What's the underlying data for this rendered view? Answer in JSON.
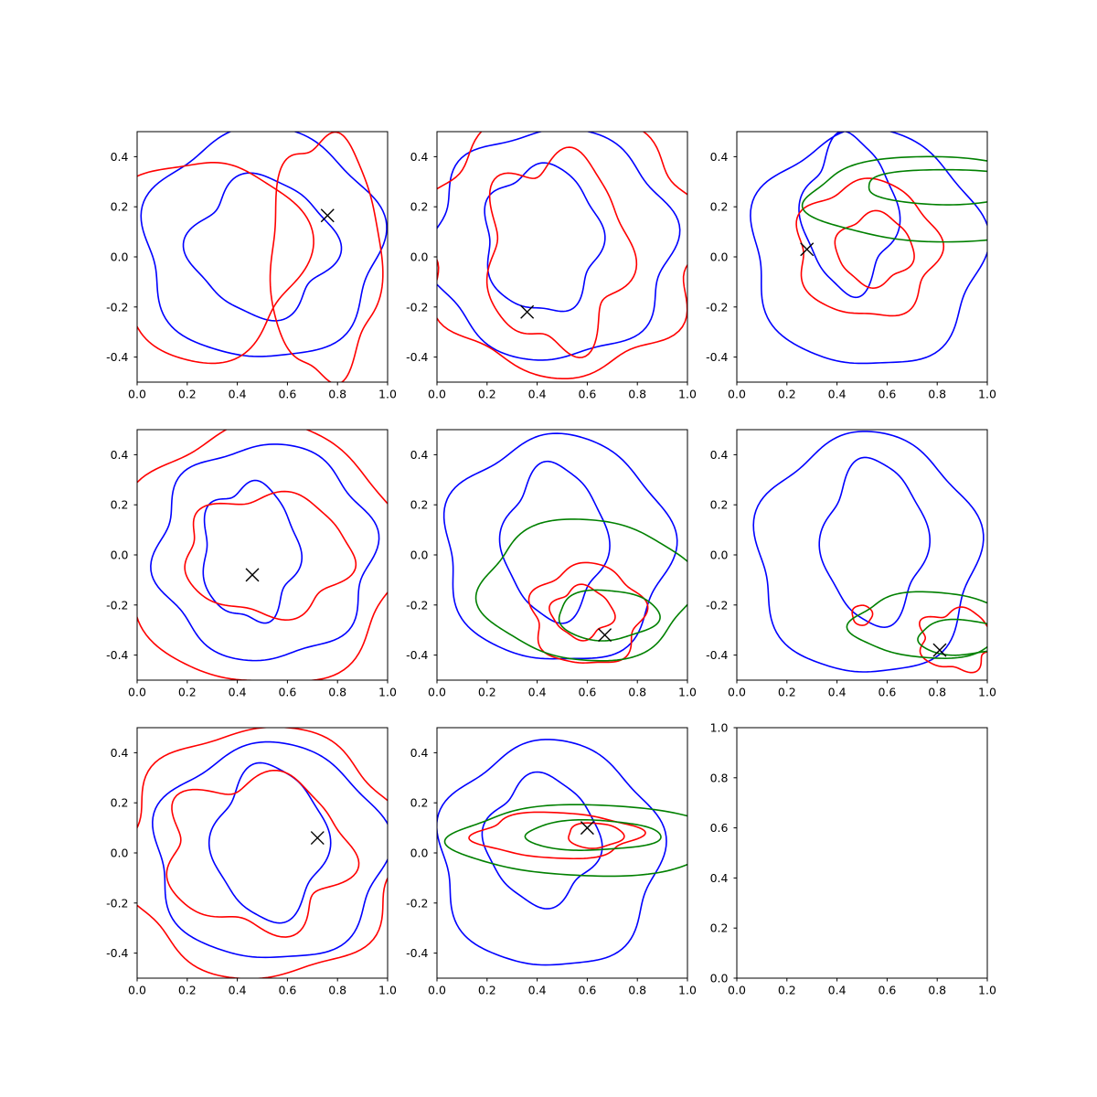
{
  "figure": {
    "rows": 3,
    "cols": 3
  },
  "colors": {
    "series_a": "#0000ff",
    "series_b": "#ff0000",
    "series_c": "#008000",
    "marker": "#000000"
  },
  "chart_data": [
    {
      "type": "contour",
      "panel": "row1-col1",
      "xlim": [
        0,
        1
      ],
      "ylim": [
        -0.5,
        0.5
      ],
      "xticks": [
        "0.0",
        "0.2",
        "0.4",
        "0.6",
        "0.8",
        "1.0"
      ],
      "yticks": [
        "0.4",
        "0.2",
        "0.0",
        "-0.2",
        "-0.4"
      ],
      "marker": {
        "x": 0.76,
        "y": 0.165
      },
      "series": [
        {
          "color": "blue",
          "contours": [
            {
              "cx": 0.5,
              "cy": 0.05,
              "rx": 0.47,
              "ry": 0.46,
              "w": 0.05,
              "k": 5,
              "ph": 0.3
            },
            {
              "cx": 0.5,
              "cy": 0.04,
              "rx": 0.28,
              "ry": 0.27,
              "w": 0.1,
              "k": 4,
              "ph": 1.2
            }
          ]
        },
        {
          "color": "red",
          "contours": [
            {
              "cx": 0.28,
              "cy": 0.0,
              "rx": 0.38,
              "ry": 0.4,
              "w": 0.1,
              "k": 3,
              "ph": 0.5
            },
            {
              "cx": 0.75,
              "cy": 0.0,
              "rx": 0.22,
              "ry": 0.48,
              "w": 0.06,
              "k": 5,
              "ph": 2.0
            }
          ]
        }
      ]
    },
    {
      "type": "contour",
      "panel": "row1-col2",
      "xlim": [
        0,
        1
      ],
      "ylim": [
        -0.5,
        0.5
      ],
      "xticks": [
        "0.0",
        "0.2",
        "0.4",
        "0.6",
        "0.8",
        "1.0"
      ],
      "yticks": [
        "0.4",
        "0.2",
        "0.0",
        "-0.2",
        "-0.4"
      ],
      "marker": {
        "x": 0.36,
        "y": -0.22
      },
      "series": [
        {
          "color": "blue",
          "contours": [
            {
              "cx": 0.46,
              "cy": 0.05,
              "rx": 0.48,
              "ry": 0.46,
              "w": 0.05,
              "k": 6,
              "ph": 0.4
            },
            {
              "cx": 0.42,
              "cy": 0.07,
              "rx": 0.23,
              "ry": 0.29,
              "w": 0.07,
              "k": 5,
              "ph": 1.0
            }
          ]
        },
        {
          "color": "red",
          "contours": [
            {
              "cx": 0.5,
              "cy": 0.05,
              "rx": 0.55,
              "ry": 0.52,
              "w": 0.06,
              "k": 7,
              "ph": 0.2
            },
            {
              "cx": 0.48,
              "cy": 0.02,
              "rx": 0.28,
              "ry": 0.38,
              "w": 0.12,
              "k": 5,
              "ph": 1.7
            }
          ]
        }
      ]
    },
    {
      "type": "contour",
      "panel": "row1-col3",
      "xlim": [
        0,
        1
      ],
      "ylim": [
        -0.5,
        0.5
      ],
      "xticks": [
        "0.0",
        "0.2",
        "0.4",
        "0.6",
        "0.8",
        "1.0"
      ],
      "yticks": [
        "0.4",
        "0.2",
        "0.0",
        "-0.2",
        "-0.4"
      ],
      "marker": {
        "x": 0.28,
        "y": 0.03
      },
      "series": [
        {
          "color": "blue",
          "contours": [
            {
              "cx": 0.52,
              "cy": 0.03,
              "rx": 0.46,
              "ry": 0.47,
              "w": 0.05,
              "k": 5,
              "ph": 0.6
            },
            {
              "cx": 0.45,
              "cy": 0.17,
              "rx": 0.18,
              "ry": 0.3,
              "w": 0.1,
              "k": 4,
              "ph": 1.4
            }
          ]
        },
        {
          "color": "red",
          "contours": [
            {
              "cx": 0.52,
              "cy": 0.03,
              "rx": 0.28,
              "ry": 0.27,
              "w": 0.07,
              "k": 5,
              "ph": 0.9
            },
            {
              "cx": 0.55,
              "cy": 0.03,
              "rx": 0.15,
              "ry": 0.14,
              "w": 0.08,
              "k": 4,
              "ph": 2.2
            }
          ]
        },
        {
          "color": "green",
          "contours": [
            {
              "cx": 0.8,
              "cy": 0.23,
              "rx": 0.52,
              "ry": 0.17,
              "w": 0.04,
              "k": 4,
              "ph": 0.2
            },
            {
              "cx": 0.85,
              "cy": 0.28,
              "rx": 0.34,
              "ry": 0.07,
              "w": 0.04,
              "k": 3,
              "ph": 1.1
            }
          ]
        }
      ]
    },
    {
      "type": "contour",
      "panel": "row2-col1",
      "xlim": [
        0,
        1
      ],
      "ylim": [
        -0.5,
        0.5
      ],
      "xticks": [
        "0.0",
        "0.2",
        "0.4",
        "0.6",
        "0.8",
        "1.0"
      ],
      "yticks": [
        "0.4",
        "0.2",
        "0.0",
        "-0.2",
        "-0.4"
      ],
      "marker": {
        "x": 0.46,
        "y": -0.08
      },
      "series": [
        {
          "color": "blue",
          "contours": [
            {
              "cx": 0.51,
              "cy": 0.01,
              "rx": 0.43,
              "ry": 0.43,
              "w": 0.05,
              "k": 6,
              "ph": 0.3
            },
            {
              "cx": 0.45,
              "cy": 0.01,
              "rx": 0.19,
              "ry": 0.27,
              "w": 0.08,
              "k": 5,
              "ph": 1.5
            }
          ]
        },
        {
          "color": "red",
          "contours": [
            {
              "cx": 0.5,
              "cy": 0.0,
              "rx": 0.55,
              "ry": 0.52,
              "w": 0.05,
              "k": 5,
              "ph": 0.8
            },
            {
              "cx": 0.52,
              "cy": 0.0,
              "rx": 0.33,
              "ry": 0.24,
              "w": 0.08,
              "k": 5,
              "ph": 2.0
            }
          ]
        }
      ]
    },
    {
      "type": "contour",
      "panel": "row2-col2",
      "xlim": [
        0,
        1
      ],
      "ylim": [
        -0.5,
        0.5
      ],
      "xticks": [
        "0.0",
        "0.2",
        "0.4",
        "0.6",
        "0.8",
        "1.0"
      ],
      "yticks": [
        "0.4",
        "0.2",
        "0.0",
        "-0.2",
        "-0.4"
      ],
      "marker": {
        "x": 0.67,
        "y": -0.32
      },
      "series": [
        {
          "color": "blue",
          "contours": [
            {
              "cx": 0.48,
              "cy": 0.02,
              "rx": 0.45,
              "ry": 0.45,
              "w": 0.05,
              "k": 5,
              "ph": 0.7
            },
            {
              "cx": 0.47,
              "cy": 0.05,
              "rx": 0.2,
              "ry": 0.3,
              "w": 0.08,
              "k": 4,
              "ph": 1.3
            }
          ]
        },
        {
          "color": "red",
          "contours": [
            {
              "cx": 0.6,
              "cy": -0.24,
              "rx": 0.22,
              "ry": 0.2,
              "w": 0.08,
              "k": 5,
              "ph": 0.4
            },
            {
              "cx": 0.58,
              "cy": -0.23,
              "rx": 0.12,
              "ry": 0.1,
              "w": 0.1,
              "k": 4,
              "ph": 1.9
            }
          ]
        },
        {
          "color": "green",
          "contours": [
            {
              "cx": 0.6,
              "cy": -0.14,
              "rx": 0.42,
              "ry": 0.28,
              "w": 0.05,
              "k": 4,
              "ph": 0.5
            },
            {
              "cx": 0.68,
              "cy": -0.24,
              "rx": 0.2,
              "ry": 0.1,
              "w": 0.05,
              "k": 3,
              "ph": 1.6
            }
          ]
        }
      ]
    },
    {
      "type": "contour",
      "panel": "row2-col3",
      "xlim": [
        0,
        1
      ],
      "ylim": [
        -0.5,
        0.5
      ],
      "xticks": [
        "0.0",
        "0.2",
        "0.4",
        "0.6",
        "0.8",
        "1.0"
      ],
      "yticks": [
        "0.4",
        "0.2",
        "0.0",
        "-0.2",
        "-0.4"
      ],
      "marker": {
        "x": 0.81,
        "y": -0.38
      },
      "series": [
        {
          "color": "blue",
          "contours": [
            {
              "cx": 0.52,
              "cy": 0.0,
              "rx": 0.44,
              "ry": 0.48,
              "w": 0.05,
              "k": 5,
              "ph": 0.3
            },
            {
              "cx": 0.55,
              "cy": 0.05,
              "rx": 0.2,
              "ry": 0.32,
              "w": 0.08,
              "k": 4,
              "ph": 1.0
            }
          ]
        },
        {
          "color": "red",
          "contours": [
            {
              "cx": 0.5,
              "cy": -0.24,
              "rx": 0.04,
              "ry": 0.04,
              "w": 0.05,
              "k": 3,
              "ph": 0.5
            },
            {
              "cx": 0.88,
              "cy": -0.34,
              "rx": 0.15,
              "ry": 0.12,
              "w": 0.12,
              "k": 5,
              "ph": 1.4
            }
          ]
        },
        {
          "color": "green",
          "contours": [
            {
              "cx": 0.78,
              "cy": -0.28,
              "rx": 0.32,
              "ry": 0.13,
              "w": 0.05,
              "k": 4,
              "ph": 0.8
            },
            {
              "cx": 0.9,
              "cy": -0.33,
              "rx": 0.18,
              "ry": 0.07,
              "w": 0.05,
              "k": 3,
              "ph": 2.1
            }
          ]
        }
      ]
    },
    {
      "type": "contour",
      "panel": "row3-col1",
      "xlim": [
        0,
        1
      ],
      "ylim": [
        -0.5,
        0.5
      ],
      "xticks": [
        "0.0",
        "0.2",
        "0.4",
        "0.6",
        "0.8",
        "1.0"
      ],
      "yticks": [
        "0.4",
        "0.2",
        "0.0",
        "-0.2",
        "-0.4"
      ],
      "marker": {
        "x": 0.72,
        "y": 0.06
      },
      "series": [
        {
          "color": "blue",
          "contours": [
            {
              "cx": 0.53,
              "cy": 0.0,
              "rx": 0.46,
              "ry": 0.43,
              "w": 0.05,
              "k": 5,
              "ph": 0.5
            },
            {
              "cx": 0.53,
              "cy": 0.04,
              "rx": 0.22,
              "ry": 0.3,
              "w": 0.08,
              "k": 4,
              "ph": 1.1
            }
          ]
        },
        {
          "color": "red",
          "contours": [
            {
              "cx": 0.5,
              "cy": 0.0,
              "rx": 0.55,
              "ry": 0.5,
              "w": 0.05,
              "k": 6,
              "ph": 0.2
            },
            {
              "cx": 0.48,
              "cy": 0.0,
              "rx": 0.36,
              "ry": 0.3,
              "w": 0.12,
              "k": 5,
              "ph": 1.8
            }
          ]
        }
      ]
    },
    {
      "type": "contour",
      "panel": "row3-col2",
      "xlim": [
        0,
        1
      ],
      "ylim": [
        -0.5,
        0.5
      ],
      "xticks": [
        "0.0",
        "0.2",
        "0.4",
        "0.6",
        "0.8",
        "1.0"
      ],
      "yticks": [
        "0.4",
        "0.2",
        "0.0",
        "-0.2",
        "-0.4"
      ],
      "marker": {
        "x": 0.6,
        "y": 0.1
      },
      "series": [
        {
          "color": "blue",
          "contours": [
            {
              "cx": 0.45,
              "cy": -0.01,
              "rx": 0.44,
              "ry": 0.45,
              "w": 0.05,
              "k": 5,
              "ph": 0.4
            },
            {
              "cx": 0.42,
              "cy": 0.05,
              "rx": 0.22,
              "ry": 0.25,
              "w": 0.08,
              "k": 4,
              "ph": 1.6
            }
          ]
        },
        {
          "color": "red",
          "contours": [
            {
              "cx": 0.48,
              "cy": 0.07,
              "rx": 0.32,
              "ry": 0.09,
              "w": 0.08,
              "k": 4,
              "ph": 0.6
            },
            {
              "cx": 0.63,
              "cy": 0.07,
              "rx": 0.11,
              "ry": 0.05,
              "w": 0.06,
              "k": 3,
              "ph": 1.5
            }
          ]
        },
        {
          "color": "green",
          "contours": [
            {
              "cx": 0.62,
              "cy": 0.05,
              "rx": 0.56,
              "ry": 0.14,
              "w": 0.04,
              "k": 4,
              "ph": 0.9
            },
            {
              "cx": 0.62,
              "cy": 0.07,
              "rx": 0.27,
              "ry": 0.06,
              "w": 0.04,
              "k": 3,
              "ph": 2.3
            }
          ]
        }
      ]
    },
    {
      "type": "empty",
      "panel": "row3-col3",
      "xlim": [
        0,
        1
      ],
      "ylim": [
        0,
        1
      ],
      "xticks": [
        "0.0",
        "0.2",
        "0.4",
        "0.6",
        "0.8",
        "1.0"
      ],
      "yticks": [
        "1.0",
        "0.8",
        "0.6",
        "0.4",
        "0.2",
        "0.0"
      ],
      "series": []
    }
  ]
}
